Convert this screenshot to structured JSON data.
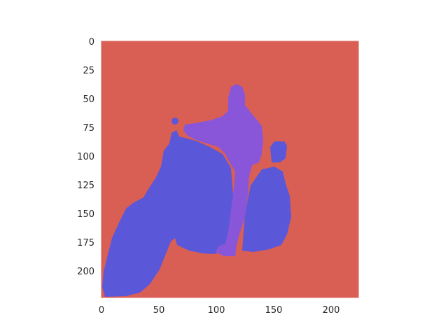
{
  "figure": {
    "x_ticks": [
      "0",
      "50",
      "100",
      "150",
      "200"
    ],
    "y_ticks": [
      "0",
      "25",
      "50",
      "75",
      "100",
      "125",
      "150",
      "175",
      "200"
    ]
  },
  "colors": {
    "background_class": "#d95f55",
    "vehicle_class": "#5b57d9",
    "person_class": "#8956d9"
  }
}
